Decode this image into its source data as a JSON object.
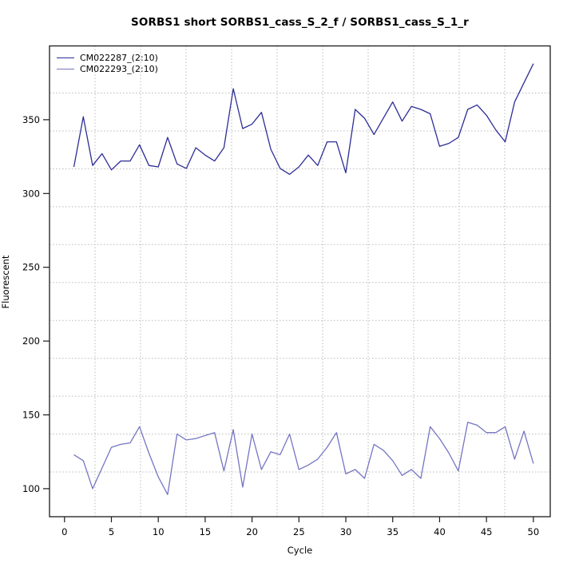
{
  "chart_data": {
    "type": "line",
    "title": "SORBS1 short SORBS1_cass_S_2_f / SORBS1_cass_S_1_r",
    "xlabel": "Cycle",
    "ylabel": "Fluorescent",
    "xlim": [
      -1.6,
      51.8
    ],
    "ylim": [
      81,
      400
    ],
    "x_ticks": [
      0,
      5,
      10,
      15,
      20,
      25,
      30,
      35,
      40,
      45,
      50
    ],
    "y_ticks": [
      100,
      150,
      200,
      250,
      300,
      350
    ],
    "grid": true,
    "legend_position": "top-left",
    "x_start": 1,
    "x_step": 1,
    "series": [
      {
        "name": "CM022287_(2:10)",
        "color": "#2d2d96",
        "values": [
          318,
          352,
          319,
          327,
          316,
          322,
          322,
          333,
          319,
          318,
          338,
          320,
          317,
          331,
          326,
          322,
          331,
          371,
          344,
          347,
          355,
          330,
          317,
          313,
          318,
          326,
          319,
          335,
          335,
          314,
          357,
          351,
          340,
          351,
          362,
          349,
          359,
          357,
          354,
          332,
          334,
          338,
          357,
          360,
          353,
          343,
          335,
          362,
          375,
          388
        ]
      },
      {
        "name": "CM022293_(2:10)",
        "color": "#7575c3",
        "values": [
          123,
          119,
          100,
          114,
          128,
          130,
          131,
          142,
          124,
          108,
          96,
          137,
          133,
          134,
          136,
          138,
          112,
          140,
          101,
          137,
          113,
          125,
          123,
          137,
          113,
          116,
          120,
          128,
          138,
          110,
          113,
          107,
          130,
          126,
          119,
          109,
          113,
          107,
          142,
          134,
          124,
          112,
          145,
          143,
          138,
          138,
          142,
          120,
          139,
          117
        ]
      }
    ]
  },
  "colors": {
    "grid": "#b9b9b9",
    "axis": "#1a1a1a",
    "text": "#000000"
  }
}
